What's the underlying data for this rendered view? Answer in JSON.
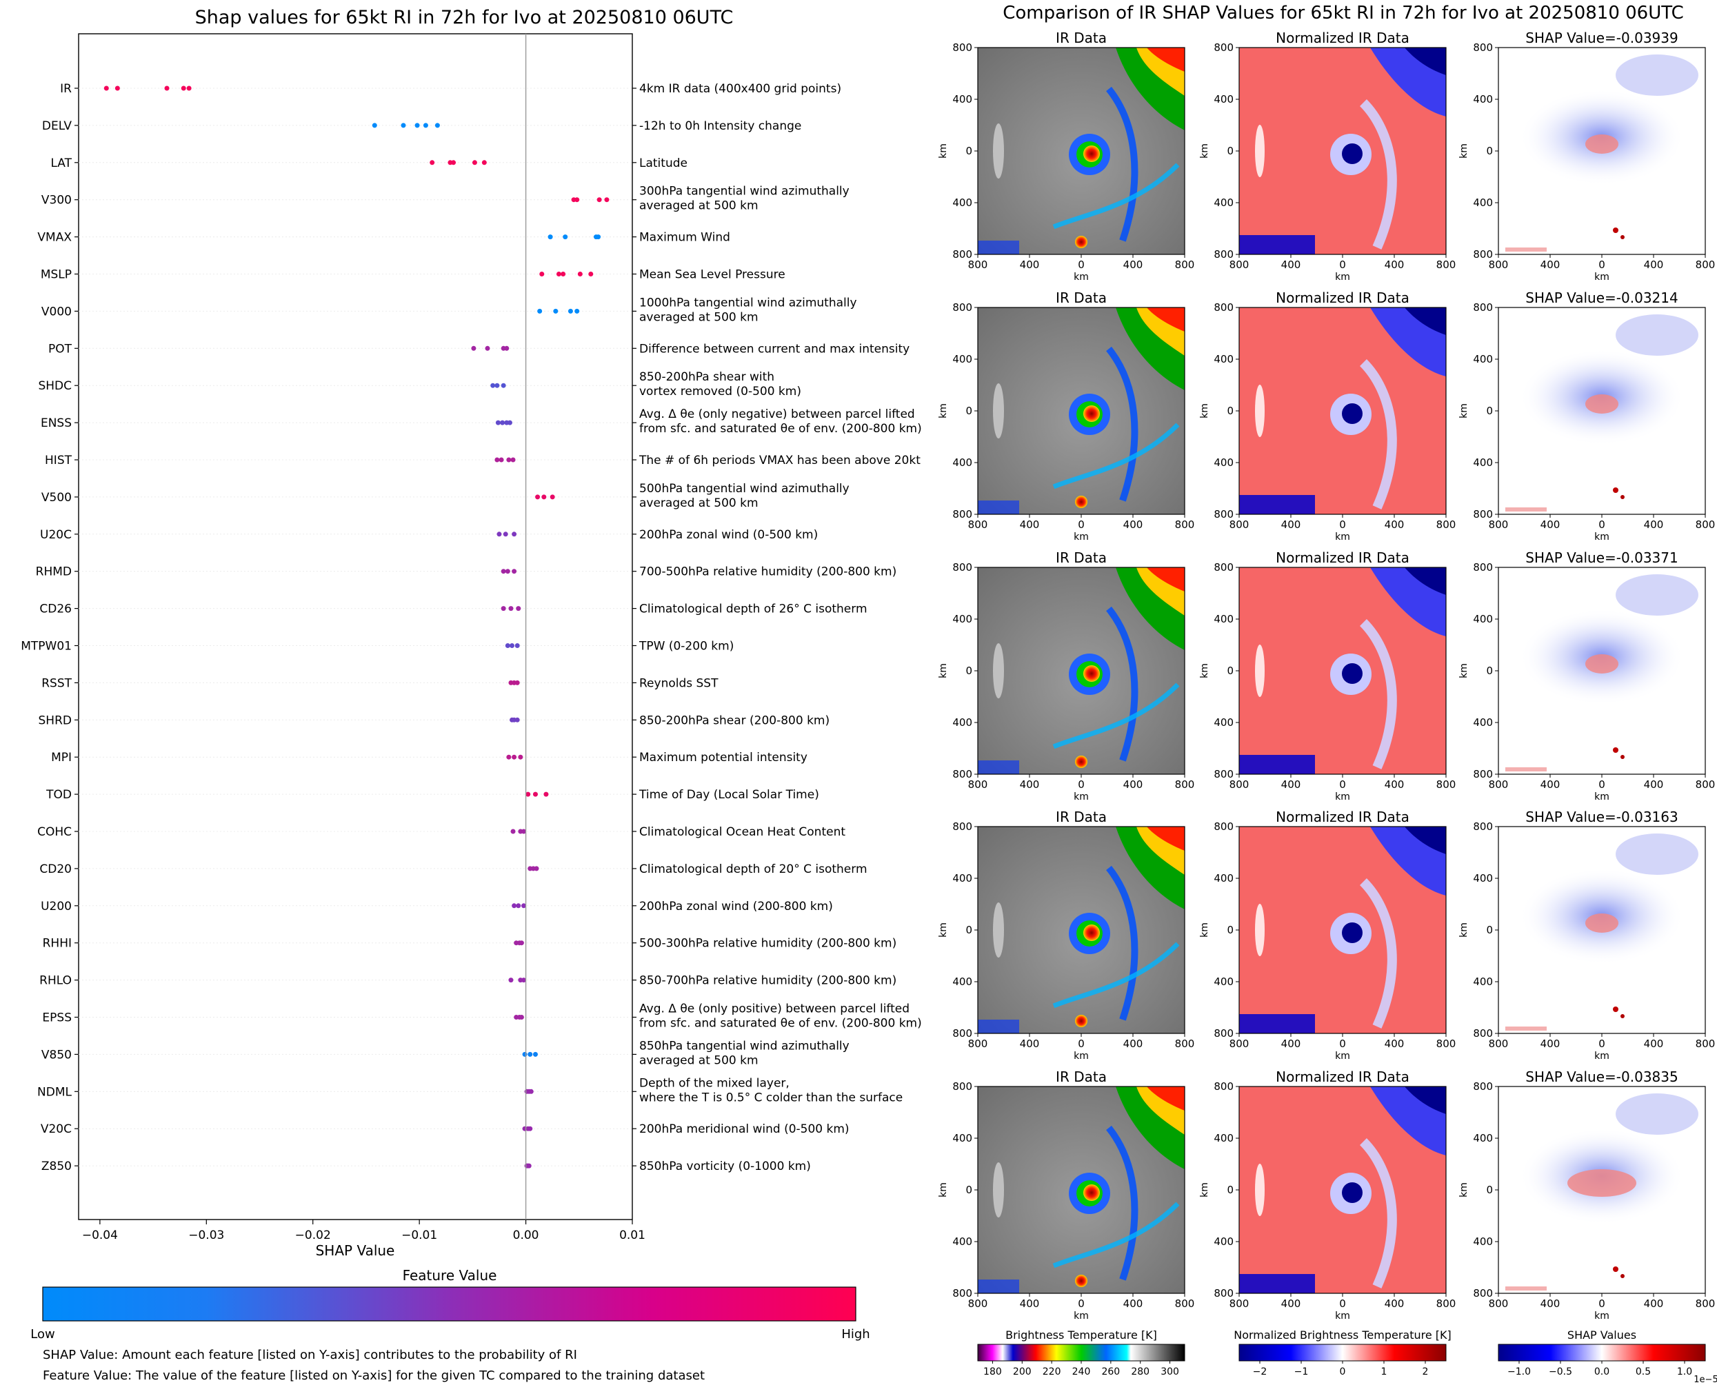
{
  "left_panel": {
    "title": "Shap values for 65kt RI in 72h for Ivo at 20250810 06UTC",
    "xlabel": "SHAP Value",
    "colorbar_title": "Feature Value",
    "colorbar_low": "Low",
    "colorbar_high": "High",
    "footnote_1": "SHAP Value: Amount each feature [listed on Y-axis] contributes to the probability of RI",
    "footnote_2": "Feature Value: The value of the feature [listed on Y-axis] for the given TC compared to the training dataset"
  },
  "right_panel": {
    "title": "Comparison of IR SHAP Values for 65kt RI in 72h for Ivo at 20250810 06UTC",
    "col_titles": [
      "IR Data",
      "Normalized IR Data"
    ],
    "shap_titles": [
      "SHAP Value=-0.03939",
      "SHAP Value=-0.03214",
      "SHAP Value=-0.03371",
      "SHAP Value=-0.03163",
      "SHAP Value=-0.03835"
    ],
    "tick_labels": [
      "800",
      "400",
      "0",
      "400",
      "800"
    ],
    "axis_unit": "km",
    "cbar1_label": "Brightness Temperature [K]",
    "cbar1_ticks": [
      "180",
      "200",
      "220",
      "240",
      "260",
      "280",
      "300"
    ],
    "cbar2_label": "Normalized Brightness Temperature [K]",
    "cbar2_ticks": [
      "−2",
      "−1",
      "0",
      "1",
      "2"
    ],
    "cbar3_label": "SHAP Values",
    "cbar3_ticks": [
      "−1.0",
      "−0.5",
      "0.0",
      "0.5",
      "1.0"
    ],
    "cbar3_exponent": "1e−5"
  },
  "colors": {
    "low": "#008bfb",
    "mid": "#8c2fb8",
    "high": "#ff0051",
    "cold": "#00008b",
    "warm": "#b20000"
  },
  "chart_data": {
    "type": "scatter",
    "title": "Shap values for 65kt RI in 72h for Ivo at 20250810 06UTC",
    "xlabel": "SHAP Value",
    "xlim": [
      -0.042,
      0.01
    ],
    "xticks": [
      -0.04,
      -0.03,
      -0.02,
      -0.01,
      0.0,
      0.01
    ],
    "xtick_labels": [
      "−0.04",
      "−0.03",
      "−0.02",
      "−0.01",
      "0.00",
      "0.01"
    ],
    "color_scale": "Feature Value (0 = Low, 1 = High)",
    "features": [
      {
        "name": "IR",
        "desc": [
          "4km IR data (400x400 grid points)"
        ],
        "feature_value": 0.95,
        "shap": [
          -0.03939,
          -0.03835,
          -0.03371,
          -0.03214,
          -0.03163
        ]
      },
      {
        "name": "DELV",
        "desc": [
          "-12h to 0h Intensity change"
        ],
        "feature_value": 0.0,
        "shap": [
          -0.0142,
          -0.0115,
          -0.0102,
          -0.0094,
          -0.0083
        ]
      },
      {
        "name": "LAT",
        "desc": [
          "Latitude"
        ],
        "feature_value": 0.95,
        "shap": [
          -0.0088,
          -0.0071,
          -0.0068,
          -0.0048,
          -0.0039
        ]
      },
      {
        "name": "V300",
        "desc": [
          "300hPa tangential wind azimuthally",
          "averaged at 500 km"
        ],
        "feature_value": 0.95,
        "shap": [
          0.0045,
          0.0048,
          0.0069,
          0.0076
        ]
      },
      {
        "name": "VMAX",
        "desc": [
          "Maximum Wind"
        ],
        "feature_value": 0.0,
        "shap": [
          0.0023,
          0.0037,
          0.0066,
          0.0068
        ]
      },
      {
        "name": "MSLP",
        "desc": [
          "Mean Sea Level Pressure"
        ],
        "feature_value": 0.95,
        "shap": [
          0.0015,
          0.0031,
          0.0035,
          0.0051,
          0.0061
        ]
      },
      {
        "name": "V000",
        "desc": [
          "1000hPa tangential wind azimuthally",
          "averaged at 500 km"
        ],
        "feature_value": 0.0,
        "shap": [
          0.0013,
          0.0028,
          0.0042,
          0.0048
        ]
      },
      {
        "name": "POT",
        "desc": [
          "Difference between current and max intensity"
        ],
        "feature_value": 0.6,
        "shap": [
          -0.0049,
          -0.0036,
          -0.0021,
          -0.0018
        ]
      },
      {
        "name": "SHDC",
        "desc": [
          "850-200hPa shear with",
          "vortex removed (0-500 km)"
        ],
        "feature_value": 0.3,
        "shap": [
          -0.0031,
          -0.0027,
          -0.0021
        ]
      },
      {
        "name": "ENSS",
        "desc": [
          "Avg. Δ θe (only negative) between parcel lifted",
          "from sfc. and saturated θe of env. (200-800 km)"
        ],
        "feature_value": 0.35,
        "shap": [
          -0.0026,
          -0.0022,
          -0.0018,
          -0.0015
        ]
      },
      {
        "name": "HIST",
        "desc": [
          "The # of 6h periods VMAX has been above 20kt"
        ],
        "feature_value": 0.65,
        "shap": [
          -0.0027,
          -0.0023,
          -0.0016,
          -0.0012
        ]
      },
      {
        "name": "V500",
        "desc": [
          "500hPa tangential wind azimuthally",
          "averaged at 500 km"
        ],
        "feature_value": 0.9,
        "shap": [
          0.0011,
          0.0017,
          0.0025
        ]
      },
      {
        "name": "U20C",
        "desc": [
          "200hPa zonal wind (0-500 km)"
        ],
        "feature_value": 0.45,
        "shap": [
          -0.0025,
          -0.0019,
          -0.0011
        ]
      },
      {
        "name": "RHMD",
        "desc": [
          "700-500hPa relative humidity (200-800 km)"
        ],
        "feature_value": 0.6,
        "shap": [
          -0.0021,
          -0.0017,
          -0.0011
        ]
      },
      {
        "name": "CD26",
        "desc": [
          "Climatological depth of 26° C isotherm"
        ],
        "feature_value": 0.6,
        "shap": [
          -0.0021,
          -0.0014,
          -0.0007
        ]
      },
      {
        "name": "MTPW01",
        "desc": [
          "TPW (0-200 km)"
        ],
        "feature_value": 0.35,
        "shap": [
          -0.0017,
          -0.0013,
          -0.0008
        ]
      },
      {
        "name": "RSST",
        "desc": [
          "Reynolds SST"
        ],
        "feature_value": 0.7,
        "shap": [
          -0.0014,
          -0.0011,
          -0.0008
        ]
      },
      {
        "name": "SHRD",
        "desc": [
          "850-200hPa shear (200-800 km)"
        ],
        "feature_value": 0.4,
        "shap": [
          -0.0013,
          -0.0011,
          -0.0008
        ]
      },
      {
        "name": "MPI",
        "desc": [
          "Maximum potential intensity"
        ],
        "feature_value": 0.7,
        "shap": [
          -0.0016,
          -0.0011,
          -0.0005
        ]
      },
      {
        "name": "TOD",
        "desc": [
          "Time of Day (Local Solar Time)"
        ],
        "feature_value": 0.9,
        "shap": [
          0.0002,
          0.0009,
          0.0019
        ]
      },
      {
        "name": "COHC",
        "desc": [
          "Climatological Ocean Heat Content"
        ],
        "feature_value": 0.6,
        "shap": [
          -0.0012,
          -0.0005,
          -0.0002
        ]
      },
      {
        "name": "CD20",
        "desc": [
          "Climatological depth of 20° C isotherm"
        ],
        "feature_value": 0.6,
        "shap": [
          0.0004,
          0.0007,
          0.001
        ]
      },
      {
        "name": "U200",
        "desc": [
          "200hPa zonal wind (200-800 km)"
        ],
        "feature_value": 0.5,
        "shap": [
          -0.0011,
          -0.0007,
          -0.0002
        ]
      },
      {
        "name": "RHHI",
        "desc": [
          "500-300hPa relative humidity (200-800 km)"
        ],
        "feature_value": 0.6,
        "shap": [
          -0.0009,
          -0.0006,
          -0.0004
        ]
      },
      {
        "name": "RHLO",
        "desc": [
          "850-700hPa relative humidity (200-800 km)"
        ],
        "feature_value": 0.55,
        "shap": [
          -0.0014,
          -0.0005,
          -0.0002
        ]
      },
      {
        "name": "EPSS",
        "desc": [
          "Avg. Δ θe (only positive) between parcel lifted",
          "from sfc. and saturated θe of env. (200-800 km)"
        ],
        "feature_value": 0.6,
        "shap": [
          -0.0009,
          -0.0006,
          -0.0004
        ]
      },
      {
        "name": "V850",
        "desc": [
          "850hPa tangential wind azimuthally",
          "averaged at 500 km"
        ],
        "feature_value": 0.05,
        "shap": [
          -0.0001,
          0.0004,
          0.0009
        ]
      },
      {
        "name": "NDML",
        "desc": [
          "Depth of the mixed layer,",
          "where the T is 0.5° C colder than the surface"
        ],
        "feature_value": 0.55,
        "shap": [
          0.0001,
          0.0003,
          0.0005
        ]
      },
      {
        "name": "V20C",
        "desc": [
          "200hPa meridional wind (0-500 km)"
        ],
        "feature_value": 0.55,
        "shap": [
          -0.0001,
          0.0002,
          0.0004
        ]
      },
      {
        "name": "Z850",
        "desc": [
          "850hPa vorticity (0-1000 km)"
        ],
        "feature_value": 0.55,
        "shap": [
          0.0001,
          0.0002,
          0.0003
        ]
      }
    ]
  }
}
